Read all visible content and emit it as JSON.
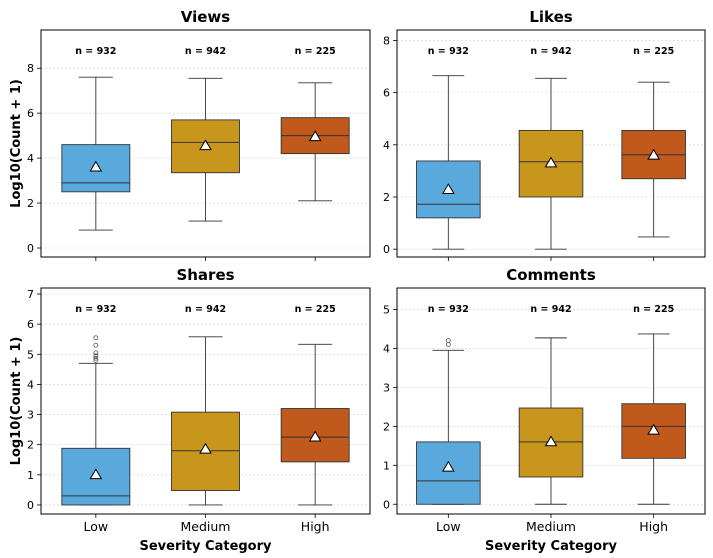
{
  "chart_data": [
    {
      "type": "box",
      "title": "Views",
      "ylabel": "Log10(Count + 1)",
      "xlabel": "",
      "categories": [
        "Low",
        "Medium",
        "High"
      ],
      "ylim": [
        -0.4,
        9.7
      ],
      "yticks": [
        0,
        2,
        4,
        6,
        8
      ],
      "grid": true,
      "n_labels": [
        "n = 932",
        "n = 942",
        "n = 225"
      ],
      "boxes": [
        {
          "whislo": 0.8,
          "q1": 2.5,
          "med": 2.9,
          "q3": 4.6,
          "whishi": 7.6,
          "mean": 3.6,
          "fliers": []
        },
        {
          "whislo": 1.2,
          "q1": 3.35,
          "med": 4.7,
          "q3": 5.7,
          "whishi": 7.55,
          "mean": 4.55,
          "fliers": []
        },
        {
          "whislo": 2.1,
          "q1": 4.2,
          "med": 5.0,
          "q3": 5.8,
          "whishi": 7.35,
          "mean": 4.95,
          "fliers": []
        }
      ]
    },
    {
      "type": "box",
      "title": "Likes",
      "ylabel": "",
      "xlabel": "",
      "categories": [
        "Low",
        "Medium",
        "High"
      ],
      "ylim": [
        -0.3,
        8.4
      ],
      "yticks": [
        0,
        2,
        4,
        6,
        8
      ],
      "grid": true,
      "n_labels": [
        "n = 932",
        "n = 942",
        "n = 225"
      ],
      "boxes": [
        {
          "whislo": 0.0,
          "q1": 1.2,
          "med": 1.72,
          "q3": 3.38,
          "whishi": 6.65,
          "mean": 2.28,
          "fliers": []
        },
        {
          "whislo": 0.0,
          "q1": 2.0,
          "med": 3.35,
          "q3": 4.55,
          "whishi": 6.55,
          "mean": 3.3,
          "fliers": []
        },
        {
          "whislo": 0.47,
          "q1": 2.7,
          "med": 3.62,
          "q3": 4.55,
          "whishi": 6.4,
          "mean": 3.6,
          "fliers": []
        }
      ]
    },
    {
      "type": "box",
      "title": "Shares",
      "ylabel": "Log10(Count + 1)",
      "xlabel": "Severity Category",
      "categories": [
        "Low",
        "Medium",
        "High"
      ],
      "ylim": [
        -0.3,
        7.2
      ],
      "yticks": [
        0,
        1,
        2,
        3,
        4,
        5,
        6,
        7
      ],
      "grid": true,
      "n_labels": [
        "n = 932",
        "n = 942",
        "n = 225"
      ],
      "boxes": [
        {
          "whislo": 0.0,
          "q1": 0.0,
          "med": 0.3,
          "q3": 1.88,
          "whishi": 4.7,
          "mean": 1.0,
          "fliers": [
            4.8,
            4.87,
            4.95,
            5.05,
            5.3,
            5.55
          ]
        },
        {
          "whislo": 0.0,
          "q1": 0.48,
          "med": 1.8,
          "q3": 3.08,
          "whishi": 5.58,
          "mean": 1.85,
          "fliers": []
        },
        {
          "whislo": 0.0,
          "q1": 1.43,
          "med": 2.25,
          "q3": 3.2,
          "whishi": 5.33,
          "mean": 2.25,
          "fliers": []
        }
      ]
    },
    {
      "type": "box",
      "title": "Comments",
      "ylabel": "",
      "xlabel": "Severity Category",
      "categories": [
        "Low",
        "Medium",
        "High"
      ],
      "ylim": [
        -0.25,
        5.55
      ],
      "yticks": [
        0,
        1,
        2,
        3,
        4,
        5
      ],
      "grid": true,
      "n_labels": [
        "n = 932",
        "n = 942",
        "n = 225"
      ],
      "boxes": [
        {
          "whislo": 0.0,
          "q1": 0.0,
          "med": 0.6,
          "q3": 1.6,
          "whishi": 3.95,
          "mean": 0.95,
          "fliers": [
            4.1,
            4.2
          ]
        },
        {
          "whislo": 0.0,
          "q1": 0.7,
          "med": 1.6,
          "q3": 2.47,
          "whishi": 4.27,
          "mean": 1.6,
          "fliers": []
        },
        {
          "whislo": 0.0,
          "q1": 1.18,
          "med": 2.0,
          "q3": 2.58,
          "whishi": 4.37,
          "mean": 1.9,
          "fliers": []
        }
      ]
    }
  ],
  "colors": {
    "low": "#5aa9dc",
    "medium": "#c9961d",
    "high": "#c0591b",
    "grid": "#d0d0d0",
    "mean_marker": "#ffffff"
  }
}
